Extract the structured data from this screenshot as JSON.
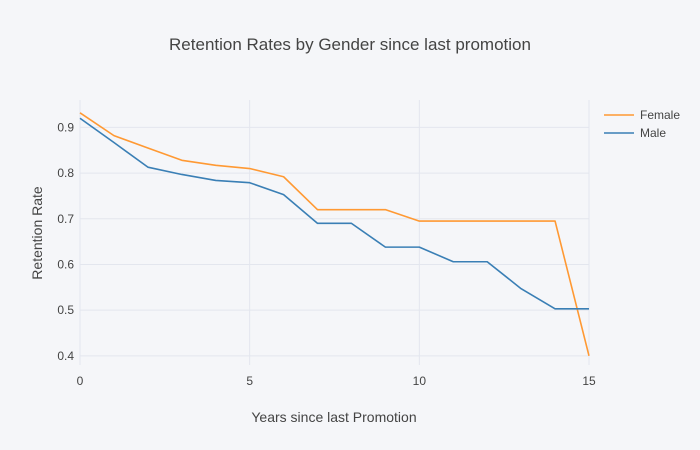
{
  "chart_data": {
    "type": "line",
    "title": "Retention Rates by Gender since last promotion",
    "xlabel": "Years since last Promotion",
    "ylabel": "Retention Rate",
    "xlim": [
      0,
      15
    ],
    "ylim": [
      0.38,
      0.96
    ],
    "xticks": [
      0,
      5,
      10,
      15
    ],
    "yticks": [
      0.4,
      0.5,
      0.6,
      0.7,
      0.8,
      0.9
    ],
    "grid": true,
    "legend": "top-right",
    "x": [
      0,
      1,
      2,
      3,
      4,
      5,
      6,
      7,
      8,
      9,
      10,
      11,
      12,
      13,
      14,
      15
    ],
    "series": [
      {
        "name": "Female",
        "color": "#ff9933",
        "values": [
          0.932,
          0.882,
          0.855,
          0.828,
          0.817,
          0.81,
          0.792,
          0.72,
          0.72,
          0.72,
          0.695,
          0.695,
          0.695,
          0.695,
          0.695,
          0.4
        ]
      },
      {
        "name": "Male",
        "color": "#3a7fb5",
        "values": [
          0.92,
          0.867,
          0.813,
          0.797,
          0.784,
          0.779,
          0.753,
          0.69,
          0.69,
          0.638,
          0.638,
          0.606,
          0.606,
          0.547,
          0.503,
          0.503
        ]
      }
    ]
  }
}
